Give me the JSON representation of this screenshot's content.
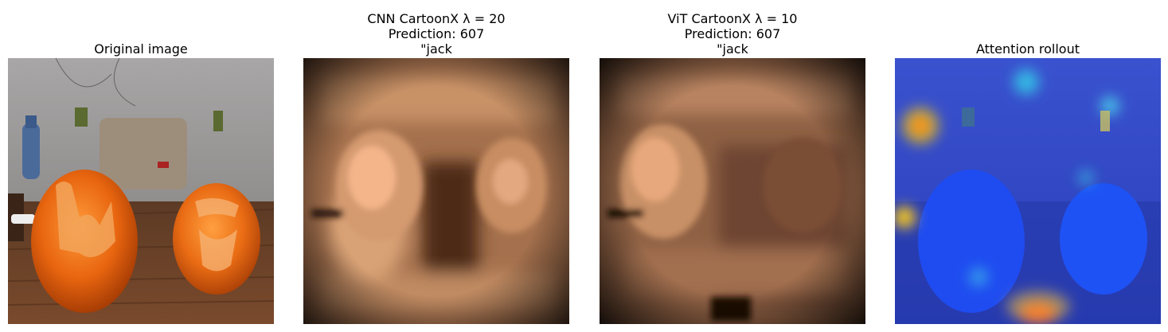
{
  "panels": [
    {
      "title_lines": [
        "Original image"
      ]
    },
    {
      "title_lines": [
        "CNN CartoonX λ = 20",
        "Prediction: 607",
        "\"jack"
      ]
    },
    {
      "title_lines": [
        "ViT CartoonX λ = 10",
        "Prediction: 607",
        "\"jack"
      ]
    },
    {
      "title_lines": [
        "Attention rollout"
      ]
    }
  ],
  "colors": {
    "pumpkin": "#e8650f",
    "table": "#6a3f26",
    "wall": "#8e8c8c",
    "copper_light": "#f4b58a",
    "copper_dark": "#1a0c05",
    "jet_blue": "#1e3fe0"
  }
}
